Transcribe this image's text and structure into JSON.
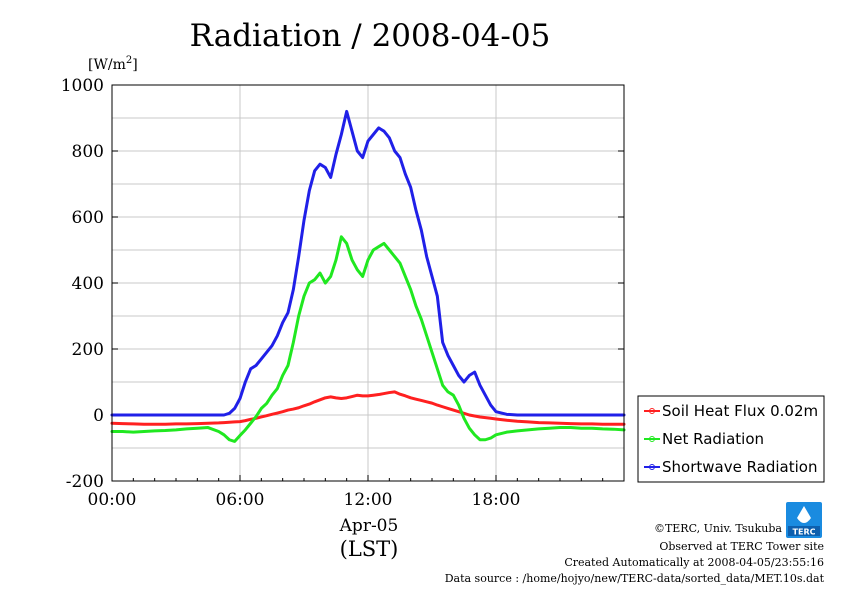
{
  "chart_data": {
    "type": "line",
    "title": "Radiation / 2008-04-05",
    "unit_label": "[W/m2]",
    "unit_base": "[W/m",
    "unit_sup": "2",
    "unit_end": "]",
    "ylim": [
      -200,
      1000
    ],
    "yticks": [
      -200,
      0,
      200,
      400,
      600,
      800,
      1000
    ],
    "xlim": [
      0,
      24
    ],
    "xticks": [
      0,
      6,
      12,
      18
    ],
    "xtick_labels": [
      "00:00",
      "06:00",
      "12:00",
      "18:00"
    ],
    "xlabel_date": "Apr-05",
    "xlabel_tz": "(LST)",
    "grid": true,
    "legend_position": "right",
    "x": [
      0,
      0.5,
      1,
      1.5,
      2,
      2.5,
      3,
      3.5,
      4,
      4.5,
      5,
      5.25,
      5.5,
      5.75,
      6,
      6.25,
      6.5,
      6.75,
      7,
      7.25,
      7.5,
      7.75,
      8,
      8.25,
      8.5,
      8.75,
      9,
      9.25,
      9.5,
      9.75,
      10,
      10.25,
      10.5,
      10.75,
      11,
      11.25,
      11.5,
      11.75,
      12,
      12.25,
      12.5,
      12.75,
      13,
      13.25,
      13.5,
      13.75,
      14,
      14.25,
      14.5,
      14.75,
      15,
      15.25,
      15.5,
      15.75,
      16,
      16.25,
      16.5,
      16.75,
      17,
      17.25,
      17.5,
      17.75,
      18,
      18.5,
      19,
      19.5,
      20,
      20.5,
      21,
      21.5,
      22,
      22.5,
      23,
      23.5,
      24
    ],
    "series": [
      {
        "name": "Soil Heat Flux 0.02m",
        "color": "#ff2020",
        "values": [
          -25,
          -26,
          -27,
          -28,
          -28,
          -28,
          -27,
          -27,
          -26,
          -25,
          -24,
          -23,
          -22,
          -21,
          -20,
          -17,
          -13,
          -10,
          -6,
          -2,
          2,
          6,
          10,
          15,
          18,
          22,
          28,
          33,
          40,
          46,
          52,
          55,
          52,
          50,
          52,
          56,
          60,
          58,
          58,
          60,
          62,
          65,
          68,
          70,
          63,
          58,
          52,
          48,
          44,
          40,
          36,
          30,
          25,
          20,
          15,
          10,
          5,
          0,
          -3,
          -6,
          -8,
          -10,
          -12,
          -16,
          -19,
          -21,
          -23,
          -24,
          -25,
          -26,
          -27,
          -27,
          -28,
          -28,
          -28
        ]
      },
      {
        "name": "Net Radiation",
        "color": "#20e820",
        "values": [
          -50,
          -50,
          -52,
          -50,
          -48,
          -47,
          -45,
          -42,
          -40,
          -38,
          -50,
          -60,
          -75,
          -80,
          -62,
          -45,
          -25,
          -5,
          20,
          35,
          60,
          80,
          120,
          150,
          220,
          300,
          360,
          400,
          410,
          430,
          400,
          420,
          470,
          540,
          520,
          470,
          440,
          420,
          470,
          500,
          510,
          520,
          500,
          480,
          460,
          420,
          380,
          330,
          290,
          240,
          190,
          140,
          90,
          70,
          60,
          30,
          -10,
          -40,
          -60,
          -75,
          -75,
          -70,
          -60,
          -52,
          -48,
          -45,
          -42,
          -40,
          -38,
          -38,
          -40,
          -40,
          -42,
          -43,
          -45
        ]
      },
      {
        "name": "Shortwave Radiation",
        "color": "#2020e8",
        "values": [
          0,
          0,
          0,
          0,
          0,
          0,
          0,
          0,
          0,
          0,
          0,
          0,
          5,
          20,
          50,
          100,
          140,
          150,
          170,
          190,
          210,
          240,
          280,
          310,
          380,
          480,
          590,
          680,
          740,
          760,
          750,
          720,
          790,
          850,
          920,
          860,
          800,
          780,
          830,
          850,
          870,
          860,
          840,
          800,
          780,
          730,
          690,
          620,
          560,
          480,
          420,
          360,
          220,
          180,
          150,
          120,
          100,
          120,
          130,
          90,
          60,
          30,
          10,
          2,
          0,
          0,
          0,
          0,
          0,
          0,
          0,
          0,
          0,
          0,
          0
        ]
      }
    ]
  },
  "footer": {
    "credit": "©TERC, Univ. Tsukuba",
    "observed": "Observed at TERC Tower site",
    "created": "Created Automatically at 2008-04-05/23:55:16",
    "source": "Data source : /home/hojyo/new/TERC-data/sorted_data/MET.10s.dat",
    "logo_text": "TERC"
  }
}
